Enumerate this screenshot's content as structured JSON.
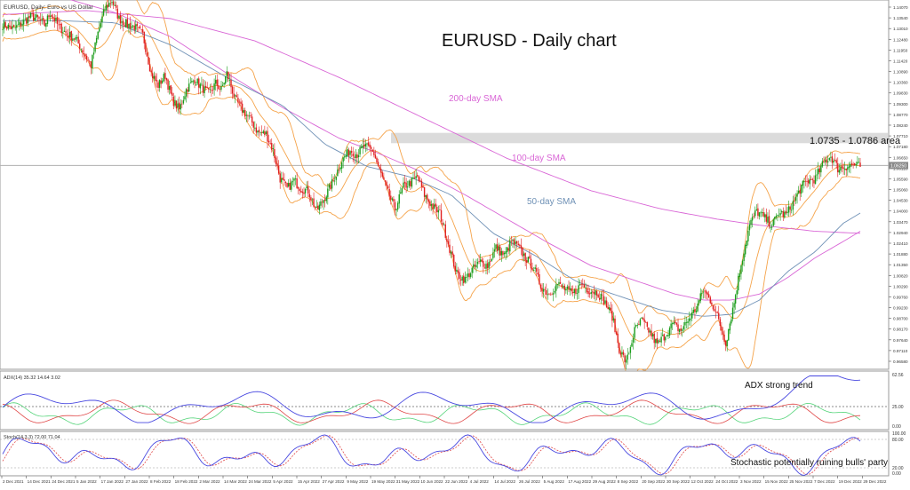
{
  "chart_data": {
    "type": "candlestick",
    "title": "EURUSD - Daily chart",
    "symbol_label": "EURUSD, Daily:  Euro vs US Dollar",
    "price_axis_ticks": [
      "1.14070",
      "1.13540",
      "1.13010",
      "1.12480",
      "1.11950",
      "1.11420",
      "1.10890",
      "1.10360",
      "1.09830",
      "1.09300",
      "1.08770",
      "1.08240",
      "1.07710",
      "1.07180",
      "1.06650",
      "1.06120",
      "1.05590",
      "1.05060",
      "1.04530",
      "1.04000",
      "1.03470",
      "1.02940",
      "1.02410",
      "1.01880",
      "1.01350",
      "1.00820",
      "1.00290",
      "0.99760",
      "0.99230",
      "0.98700",
      "0.98170",
      "0.97640",
      "0.97110",
      "0.96580"
    ],
    "current_price": "1.06250",
    "time_axis_ticks": [
      "2 Dec 2021",
      "14 Dec 2021",
      "24 Dec 2021",
      "5 Jan 2022",
      "17 Jan 2022",
      "27 Jan 2022",
      "8 Feb 2022",
      "18 Feb 2022",
      "2 Mar 2022",
      "14 Mar 2022",
      "24 Mar 2022",
      "5 Apr 2022",
      "15 Apr 2022",
      "27 Apr 2022",
      "9 May 2022",
      "19 May 2022",
      "31 May 2022",
      "10 Jun 2022",
      "22 Jun 2022",
      "4 Jul 2022",
      "14 Jul 2022",
      "26 Jul 2022",
      "5 Aug 2022",
      "17 Aug 2022",
      "29 Aug 2022",
      "8 Sep 2022",
      "20 Sep 2022",
      "30 Sep 2022",
      "12 Oct 2022",
      "24 Oct 2022",
      "3 Nov 2022",
      "15 Nov 2022",
      "25 Nov 2022",
      "7 Dec 2022",
      "19 Dec 2022",
      "29 Dec 2022"
    ],
    "closes_waypoints": [
      [
        0,
        1.132
      ],
      [
        8,
        1.13
      ],
      [
        14,
        1.133
      ],
      [
        20,
        1.136
      ],
      [
        25,
        1.135
      ],
      [
        30,
        1.132
      ],
      [
        34,
        1.138
      ],
      [
        40,
        1.131
      ],
      [
        47,
        1.127
      ],
      [
        52,
        1.125
      ],
      [
        58,
        1.118
      ],
      [
        63,
        1.112
      ],
      [
        68,
        1.128
      ],
      [
        73,
        1.14
      ],
      [
        78,
        1.144
      ],
      [
        83,
        1.135
      ],
      [
        89,
        1.132
      ],
      [
        94,
        1.131
      ],
      [
        100,
        1.127
      ],
      [
        106,
        1.108
      ],
      [
        111,
        1.102
      ],
      [
        116,
        1.107
      ],
      [
        121,
        1.095
      ],
      [
        126,
        1.09
      ],
      [
        131,
        1.1
      ],
      [
        137,
        1.105
      ],
      [
        142,
        1.101
      ],
      [
        147,
        1.098
      ],
      [
        152,
        1.103
      ],
      [
        156,
        1.1
      ],
      [
        160,
        1.108
      ],
      [
        166,
        1.095
      ],
      [
        171,
        1.09
      ],
      [
        177,
        1.085
      ],
      [
        182,
        1.079
      ],
      [
        188,
        1.078
      ],
      [
        193,
        1.07
      ],
      [
        198,
        1.056
      ],
      [
        203,
        1.051
      ],
      [
        208,
        1.055
      ],
      [
        213,
        1.051
      ],
      [
        218,
        1.05
      ],
      [
        224,
        1.04
      ],
      [
        230,
        1.047
      ],
      [
        236,
        1.055
      ],
      [
        242,
        1.065
      ],
      [
        248,
        1.07
      ],
      [
        253,
        1.068
      ],
      [
        258,
        1.072
      ],
      [
        264,
        1.07
      ],
      [
        269,
        1.06
      ],
      [
        275,
        1.049
      ],
      [
        280,
        1.041
      ],
      [
        286,
        1.052
      ],
      [
        291,
        1.054
      ],
      [
        296,
        1.057
      ],
      [
        301,
        1.048
      ],
      [
        307,
        1.042
      ],
      [
        312,
        1.039
      ],
      [
        318,
        1.024
      ],
      [
        324,
        1.009
      ],
      [
        330,
        1.006
      ],
      [
        335,
        1.011
      ],
      [
        341,
        1.015
      ],
      [
        346,
        1.013
      ],
      [
        352,
        1.022
      ],
      [
        358,
        1.018
      ],
      [
        363,
        1.025
      ],
      [
        368,
        1.022
      ],
      [
        373,
        1.017
      ],
      [
        379,
        1.012
      ],
      [
        384,
        1.003
      ],
      [
        390,
        0.999
      ],
      [
        396,
        1.004
      ],
      [
        402,
        1.001
      ],
      [
        407,
        0.999
      ],
      [
        413,
        1.004
      ],
      [
        418,
        1.001
      ],
      [
        424,
        1.0
      ],
      [
        429,
        0.996
      ],
      [
        435,
        0.988
      ],
      [
        440,
        0.972
      ],
      [
        445,
        0.965
      ],
      [
        451,
        0.981
      ],
      [
        456,
        0.986
      ],
      [
        462,
        0.98
      ],
      [
        467,
        0.974
      ],
      [
        473,
        0.979
      ],
      [
        478,
        0.984
      ],
      [
        484,
        0.981
      ],
      [
        489,
        0.986
      ],
      [
        495,
        0.992
      ],
      [
        500,
        1.001
      ],
      [
        506,
        0.995
      ],
      [
        511,
        0.986
      ],
      [
        516,
        0.975
      ],
      [
        522,
        0.995
      ],
      [
        527,
        1.014
      ],
      [
        533,
        1.033
      ],
      [
        538,
        1.04
      ],
      [
        543,
        1.037
      ],
      [
        549,
        1.033
      ],
      [
        554,
        1.039
      ],
      [
        559,
        1.038
      ],
      [
        565,
        1.045
      ],
      [
        570,
        1.052
      ],
      [
        575,
        1.055
      ],
      [
        580,
        1.056
      ],
      [
        586,
        1.064
      ],
      [
        591,
        1.067
      ],
      [
        596,
        1.061
      ],
      [
        602,
        1.062
      ],
      [
        607,
        1.063
      ],
      [
        612,
        1.062
      ]
    ],
    "moving_averages": [
      {
        "label": "200-day SMA",
        "color": "#d966d6",
        "values": [
          [
            0,
            1.137
          ],
          [
            60,
            1.139
          ],
          [
            120,
            1.135
          ],
          [
            180,
            1.124
          ],
          [
            240,
            1.106
          ],
          [
            300,
            1.086
          ],
          [
            360,
            1.066
          ],
          [
            420,
            1.05
          ],
          [
            470,
            1.041
          ],
          [
            510,
            1.036
          ],
          [
            540,
            1.033
          ],
          [
            580,
            1.03
          ],
          [
            612,
            1.029
          ]
        ]
      },
      {
        "label": "100-day SMA",
        "color": "#d966d6",
        "values": [
          [
            0,
            1.153
          ],
          [
            40,
            1.146
          ],
          [
            80,
            1.138
          ],
          [
            120,
            1.126
          ],
          [
            160,
            1.108
          ],
          [
            200,
            1.091
          ],
          [
            240,
            1.076
          ],
          [
            270,
            1.068
          ],
          [
            300,
            1.059
          ],
          [
            330,
            1.048
          ],
          [
            360,
            1.036
          ],
          [
            390,
            1.024
          ],
          [
            420,
            1.013
          ],
          [
            450,
            1.006
          ],
          [
            480,
            0.999
          ],
          [
            500,
            0.996
          ],
          [
            520,
            0.996
          ],
          [
            540,
            0.999
          ],
          [
            560,
            1.007
          ],
          [
            580,
            1.017
          ],
          [
            600,
            1.025
          ],
          [
            612,
            1.03
          ]
        ]
      },
      {
        "label": "50-day SMA",
        "color": "#6f91b6",
        "values": [
          [
            0,
            1.134
          ],
          [
            40,
            1.134
          ],
          [
            80,
            1.133
          ],
          [
            120,
            1.122
          ],
          [
            160,
            1.106
          ],
          [
            200,
            1.092
          ],
          [
            230,
            1.073
          ],
          [
            260,
            1.062
          ],
          [
            290,
            1.057
          ],
          [
            320,
            1.048
          ],
          [
            350,
            1.029
          ],
          [
            380,
            1.018
          ],
          [
            410,
            1.005
          ],
          [
            440,
            0.998
          ],
          [
            470,
            0.991
          ],
          [
            500,
            0.988
          ],
          [
            520,
            0.989
          ],
          [
            540,
            0.996
          ],
          [
            560,
            1.01
          ],
          [
            580,
            1.02
          ],
          [
            600,
            1.034
          ],
          [
            612,
            1.039
          ]
        ]
      }
    ],
    "resistance_zone": {
      "label": "1.0735 - 1.0786 area",
      "low": 1.0735,
      "high": 1.0786
    },
    "indicator_panels": [
      {
        "header": "ADX(14) 35.32 14.64 3.02",
        "ticks": [
          "62.56",
          "25.00",
          "0.00"
        ],
        "annotation": "ADX strong trend"
      },
      {
        "header": "Stoch(14,3,3) 72.00 71.04",
        "ticks": [
          "100.00",
          "80.00",
          "20.00",
          "0.00"
        ],
        "annotation": "Stochastic potentially ruining bulls' party"
      }
    ],
    "colors": {
      "bull": "#1a9c1a",
      "bear": "#e02020",
      "band": "#f5a34a",
      "sma200": "#d966d6",
      "sma50": "#6f91b6",
      "adx_main": "#4848e0",
      "adx_plus": "#55d47a",
      "adx_minus": "#e04848",
      "stoch_main": "#4848e0",
      "stoch_signal": "#e04848"
    }
  }
}
